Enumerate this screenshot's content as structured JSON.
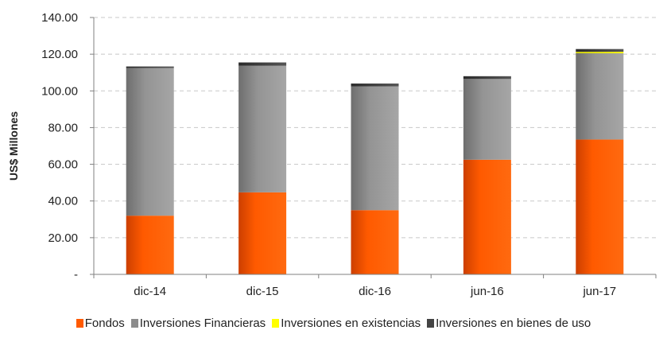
{
  "chart_data": {
    "type": "bar",
    "stacked": true,
    "title": "",
    "xlabel": "",
    "ylabel": "US$ Millones",
    "ylim": [
      0,
      140
    ],
    "yticks": [
      0,
      20,
      40,
      60,
      80,
      100,
      120,
      140
    ],
    "ytick_labels": [
      "-",
      "20.00",
      "40.00",
      "60.00",
      "80.00",
      "100.00",
      "120.00",
      "140.00"
    ],
    "grid": true,
    "legend_position": "bottom",
    "categories": [
      "dic-14",
      "dic-15",
      "dic-16",
      "jun-16",
      "jun-17"
    ],
    "series": [
      {
        "name": "Fondos",
        "color": "#ff5a00",
        "values": [
          32.0,
          44.7,
          35.0,
          62.5,
          73.5
        ]
      },
      {
        "name": "Inversiones Financieras",
        "color": "#8c8c8c",
        "values": [
          80.5,
          69.0,
          67.5,
          44.0,
          47.0
        ]
      },
      {
        "name": "Inversiones en existencias",
        "color": "#ffff00",
        "values": [
          0.0,
          0.0,
          0.0,
          0.0,
          0.8
        ]
      },
      {
        "name": "Inversiones en bienes de uso",
        "color": "#444444",
        "values": [
          0.8,
          1.8,
          1.5,
          1.5,
          1.5
        ]
      }
    ]
  }
}
